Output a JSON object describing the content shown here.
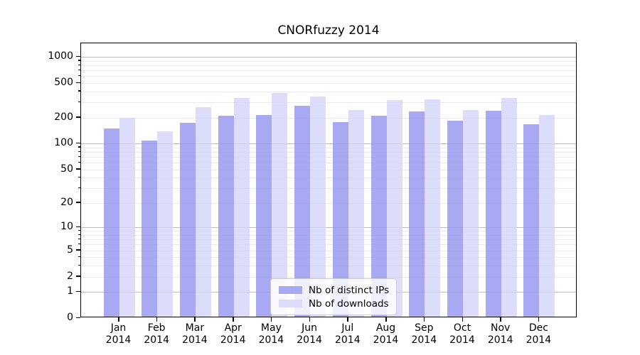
{
  "figure": {
    "background": "#ffffff"
  },
  "chart_data": {
    "type": "bar",
    "title": "CNORfuzzy 2014",
    "xlabel": "",
    "ylabel": "",
    "categories": [
      "Jan",
      "Feb",
      "Mar",
      "Apr",
      "May",
      "Jun",
      "Jul",
      "Aug",
      "Sep",
      "Oct",
      "Nov",
      "Dec"
    ],
    "category_year": "2014",
    "series": [
      {
        "name": "Nb of distinct IPs",
        "legend_color": "#a9a9f3",
        "fill": "rgba(148,148,240,0.8)",
        "values": [
          143,
          104,
          169,
          201,
          208,
          264,
          172,
          204,
          228,
          178,
          232,
          162
        ]
      },
      {
        "name": "Nb of downloads",
        "legend_color": "#dcdcfa",
        "fill": "rgba(212,212,250,0.8)",
        "values": [
          191,
          134,
          254,
          322,
          372,
          337,
          236,
          308,
          314,
          237,
          323,
          205
        ]
      }
    ],
    "yscale": "log1p",
    "ylim": [
      0,
      1400
    ],
    "yticks": [
      0,
      1,
      2,
      5,
      10,
      20,
      50,
      100,
      200,
      500,
      1000
    ],
    "ytick_labels": [
      "0",
      "1",
      "2",
      "5",
      "10",
      "20",
      "50",
      "100",
      "200",
      "500",
      "1000"
    ],
    "grid": {
      "major_values": [
        1,
        10,
        100,
        1000
      ],
      "minor_base": [
        2,
        3,
        4,
        5,
        6,
        7,
        8,
        9
      ],
      "major_color": "#bdbdbd",
      "minor_color": "#eaeaea",
      "visible": true
    },
    "legend": {
      "position": "inside-bottom-center",
      "entries": [
        "Nb of distinct IPs",
        "Nb of downloads"
      ]
    }
  }
}
